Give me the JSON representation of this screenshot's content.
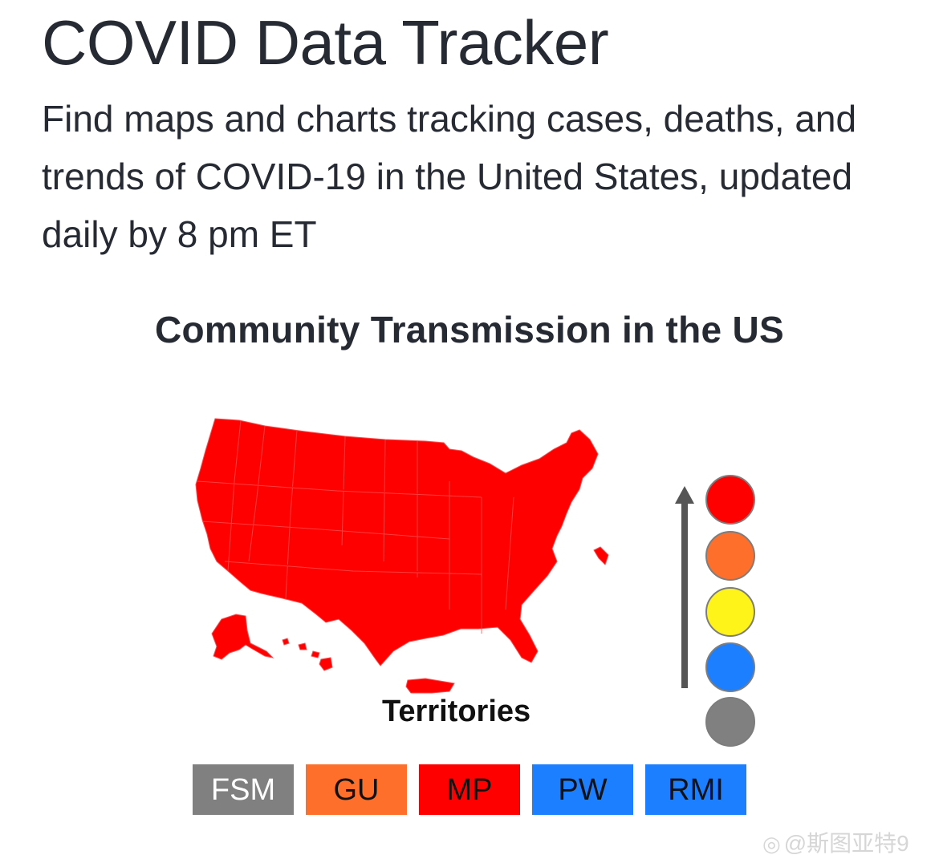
{
  "header": {
    "title": "COVID Data Tracker",
    "subtitle": "Find maps and charts tracking cases, deaths, and trends of COVID-19 in the United States, updated daily by 8 pm ET"
  },
  "map": {
    "title": "Community Transmission in the US",
    "fill_color": "#fe0000",
    "territories_label": "Territories"
  },
  "legend": {
    "arrow_icon": "arrow-up-icon",
    "levels": [
      {
        "color": "#ff0000"
      },
      {
        "color": "#ff6f2c"
      },
      {
        "color": "#fff41a"
      },
      {
        "color": "#1b7fff"
      },
      {
        "color": "#808080"
      }
    ]
  },
  "territories": [
    {
      "label": "FSM",
      "color": "#808080",
      "text_color": "#ffffff"
    },
    {
      "label": "GU",
      "color": "#ff6f2c",
      "text_color": "#111111"
    },
    {
      "label": "MP",
      "color": "#ff0000",
      "text_color": "#111111"
    },
    {
      "label": "PW",
      "color": "#1b7fff",
      "text_color": "#111111"
    },
    {
      "label": "RMI",
      "color": "#1b7fff",
      "text_color": "#111111"
    }
  ],
  "watermark": {
    "text": "@斯图亚特9"
  }
}
